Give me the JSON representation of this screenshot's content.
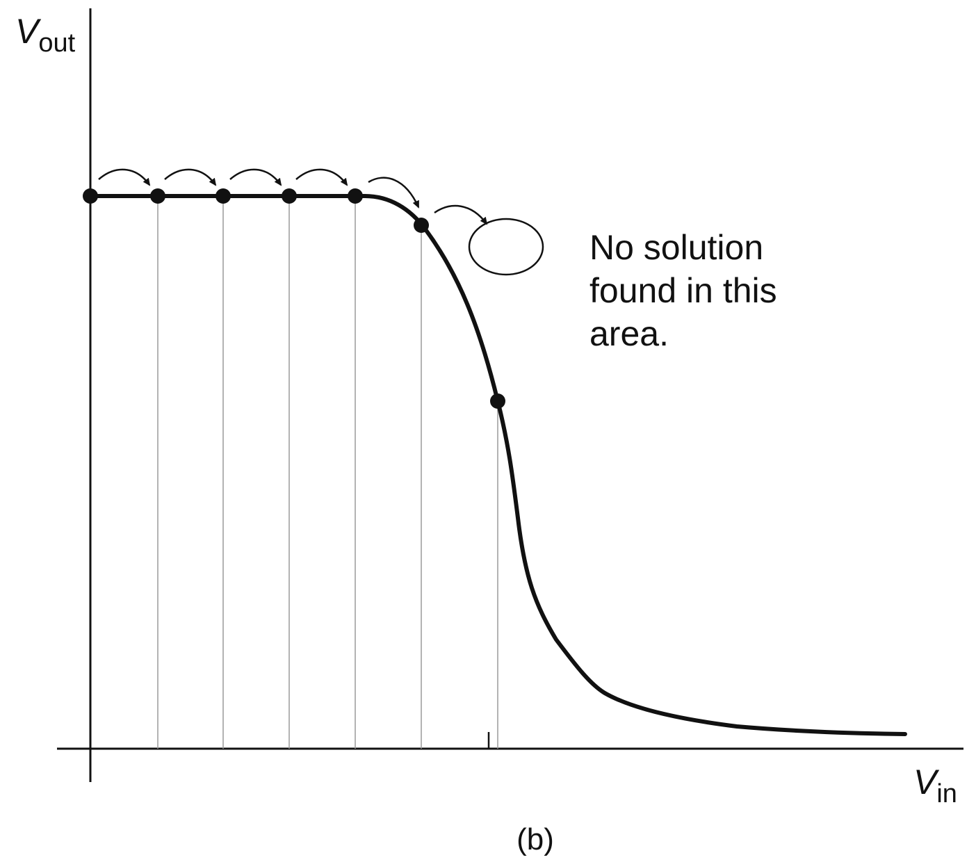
{
  "figure": {
    "caption": "(b)",
    "y_axis_label": {
      "main": "V",
      "sub": "out"
    },
    "x_axis_label": {
      "main": "V",
      "sub": "in"
    },
    "annotation_lines": [
      "No solution",
      "found in this",
      "area."
    ]
  },
  "colors": {
    "ink": "#111111",
    "guide": "#9a9a9a"
  }
}
